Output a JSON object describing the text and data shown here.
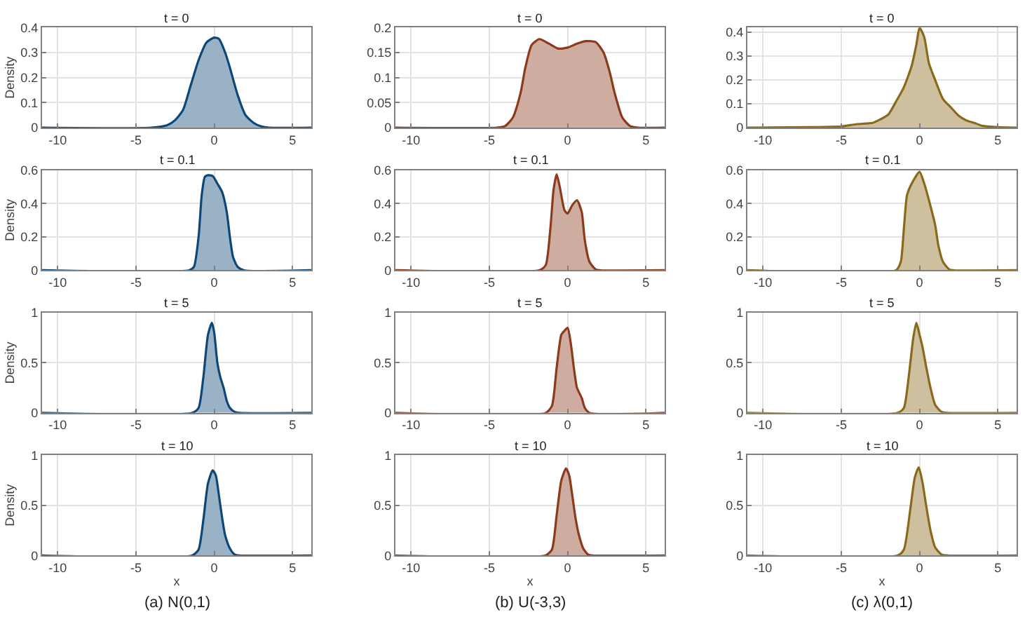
{
  "chart_data": [
    {
      "type": "area",
      "title": "t = 0",
      "ylabel": "Density",
      "color": "#0e4777",
      "grid": true,
      "xlim": [
        -11,
        6.2
      ],
      "xticks": [
        -10,
        -5,
        0,
        5
      ],
      "ylim": [
        0,
        0.4
      ],
      "yticks": [
        0,
        0.1,
        0.2,
        0.3,
        0.4
      ],
      "x": [
        -11,
        -4,
        -3,
        -2.5,
        -2,
        -1.5,
        -1,
        -0.5,
        0,
        0.3,
        0.7,
        1,
        1.5,
        2,
        2.5,
        3,
        3.5,
        6.2
      ],
      "values": [
        0,
        0,
        0.01,
        0.03,
        0.07,
        0.17,
        0.27,
        0.34,
        0.36,
        0.355,
        0.3,
        0.24,
        0.13,
        0.05,
        0.02,
        0.005,
        0,
        0
      ]
    },
    {
      "type": "area",
      "title": "t = 0",
      "color": "#8b3a1a",
      "grid": true,
      "xlim": [
        -11,
        6.2
      ],
      "xticks": [
        -10,
        -5,
        0,
        5
      ],
      "ylim": [
        0,
        0.2
      ],
      "yticks": [
        0,
        0.05,
        0.1,
        0.15,
        0.2
      ],
      "x": [
        -11,
        -4.5,
        -4,
        -3.5,
        -3,
        -2.7,
        -2.3,
        -1.8,
        -1.2,
        -0.6,
        0,
        0.6,
        1.2,
        1.8,
        2.3,
        2.7,
        3,
        3.5,
        4,
        4.5,
        6.2
      ],
      "values": [
        0,
        0,
        0.003,
        0.02,
        0.07,
        0.12,
        0.165,
        0.177,
        0.168,
        0.158,
        0.16,
        0.168,
        0.173,
        0.171,
        0.15,
        0.11,
        0.07,
        0.02,
        0.003,
        0,
        0
      ]
    },
    {
      "type": "area",
      "title": "t = 0",
      "color": "#8a6a1a",
      "grid": true,
      "xlim": [
        -11,
        6.2
      ],
      "xticks": [
        -10,
        -5,
        0,
        5
      ],
      "ylim": [
        0,
        0.42
      ],
      "yticks": [
        0,
        0.1,
        0.2,
        0.3,
        0.4
      ],
      "x": [
        -11,
        -7,
        -5,
        -4,
        -3,
        -2.5,
        -2,
        -1.5,
        -1,
        -0.5,
        -0.2,
        0,
        0.3,
        0.6,
        1,
        1.5,
        2,
        2.5,
        3,
        3.5,
        4,
        5,
        6.2
      ],
      "values": [
        0,
        0.002,
        0.005,
        0.015,
        0.02,
        0.035,
        0.055,
        0.11,
        0.17,
        0.26,
        0.35,
        0.42,
        0.38,
        0.27,
        0.2,
        0.12,
        0.085,
        0.05,
        0.03,
        0.02,
        0.008,
        0.002,
        0
      ]
    },
    {
      "type": "area",
      "title": "t = 0.1",
      "ylabel": "Density",
      "color": "#0e4777",
      "grid": true,
      "xlim": [
        -11,
        6.2
      ],
      "xticks": [
        -10,
        -5,
        0,
        5
      ],
      "ylim": [
        0,
        0.6
      ],
      "yticks": [
        0,
        0.2,
        0.4,
        0.6
      ],
      "x": [
        -11,
        -1.6,
        -1.3,
        -1,
        -0.8,
        -0.6,
        -0.4,
        -0.1,
        0.2,
        0.5,
        0.8,
        1,
        1.2,
        1.5,
        1.9,
        6.2
      ],
      "values": [
        0,
        0,
        0.02,
        0.2,
        0.45,
        0.56,
        0.57,
        0.565,
        0.52,
        0.47,
        0.35,
        0.2,
        0.08,
        0.02,
        0,
        0
      ]
    },
    {
      "type": "area",
      "title": "t = 0.1",
      "color": "#8b3a1a",
      "grid": true,
      "xlim": [
        -11,
        6.2
      ],
      "xticks": [
        -10,
        -5,
        0,
        5
      ],
      "ylim": [
        0,
        0.6
      ],
      "yticks": [
        0,
        0.2,
        0.4,
        0.6
      ],
      "x": [
        -11,
        -1.8,
        -1.4,
        -1.1,
        -0.9,
        -0.7,
        -0.5,
        -0.2,
        0,
        0.3,
        0.6,
        0.9,
        1.1,
        1.4,
        1.8,
        2.1,
        6.2
      ],
      "values": [
        0,
        0,
        0.03,
        0.25,
        0.48,
        0.575,
        0.5,
        0.36,
        0.34,
        0.39,
        0.42,
        0.35,
        0.18,
        0.05,
        0.005,
        0,
        0
      ]
    },
    {
      "type": "area",
      "title": "t = 0.1",
      "color": "#8a6a1a",
      "grid": true,
      "xlim": [
        -11,
        6.2
      ],
      "xticks": [
        -10,
        -5,
        0,
        5
      ],
      "ylim": [
        0,
        0.6
      ],
      "yticks": [
        0,
        0.2,
        0.4,
        0.6
      ],
      "x": [
        -11,
        -1.5,
        -1.2,
        -1,
        -0.8,
        -0.5,
        0,
        0.3,
        0.6,
        1,
        1.2,
        1.5,
        1.9,
        2.2,
        6.2
      ],
      "values": [
        0,
        0,
        0.05,
        0.25,
        0.45,
        0.52,
        0.59,
        0.52,
        0.42,
        0.27,
        0.15,
        0.05,
        0.005,
        0,
        0
      ]
    },
    {
      "type": "area",
      "title": "t = 5",
      "ylabel": "Density",
      "color": "#0e4777",
      "grid": true,
      "xlim": [
        -11,
        6.2
      ],
      "xticks": [
        -10,
        -5,
        0,
        5
      ],
      "ylim": [
        0,
        1
      ],
      "yticks": [
        0,
        0.5,
        1
      ],
      "x": [
        -11,
        -1.4,
        -1,
        -0.7,
        -0.4,
        -0.15,
        0,
        0.2,
        0.4,
        0.6,
        0.8,
        1,
        1.3,
        1.6,
        6.2
      ],
      "values": [
        0,
        0,
        0.05,
        0.35,
        0.78,
        0.9,
        0.8,
        0.5,
        0.35,
        0.25,
        0.12,
        0.05,
        0.01,
        0,
        0
      ]
    },
    {
      "type": "area",
      "title": "t = 5",
      "color": "#8b3a1a",
      "grid": true,
      "xlim": [
        -11,
        6.2
      ],
      "xticks": [
        -10,
        -5,
        0,
        5
      ],
      "ylim": [
        0,
        1
      ],
      "yticks": [
        0,
        0.5,
        1
      ],
      "x": [
        -11,
        -1.4,
        -1,
        -0.7,
        -0.4,
        -0.2,
        0,
        0.2,
        0.4,
        0.6,
        0.9,
        1.1,
        1.4,
        6.2
      ],
      "values": [
        0,
        0,
        0.07,
        0.45,
        0.78,
        0.82,
        0.85,
        0.7,
        0.45,
        0.25,
        0.15,
        0.05,
        0,
        0
      ]
    },
    {
      "type": "area",
      "title": "t = 5",
      "color": "#8a6a1a",
      "grid": true,
      "xlim": [
        -11,
        6.2
      ],
      "xticks": [
        -10,
        -5,
        0,
        5
      ],
      "ylim": [
        0,
        1
      ],
      "yticks": [
        0,
        0.5,
        1
      ],
      "x": [
        -11,
        -1.4,
        -1,
        -0.7,
        -0.4,
        -0.2,
        0,
        0.2,
        0.4,
        0.7,
        1,
        1.4,
        1.8,
        6.2
      ],
      "values": [
        0,
        0,
        0.05,
        0.35,
        0.75,
        0.9,
        0.78,
        0.65,
        0.48,
        0.25,
        0.08,
        0.01,
        0,
        0
      ]
    },
    {
      "type": "area",
      "title": "t = 10",
      "ylabel": "Density",
      "xlabel": "x",
      "annotations": [
        "(a) N(0,1)"
      ],
      "color": "#0e4777",
      "grid": true,
      "xlim": [
        -11,
        6.2
      ],
      "xticks": [
        -10,
        -5,
        0,
        5
      ],
      "ylim": [
        0,
        1
      ],
      "yticks": [
        0,
        0.5,
        1
      ],
      "x": [
        -11,
        -1.4,
        -1,
        -0.7,
        -0.4,
        -0.1,
        0.1,
        0.3,
        0.5,
        0.7,
        1,
        1.3,
        1.6,
        6.2
      ],
      "values": [
        0,
        0,
        0.06,
        0.35,
        0.72,
        0.85,
        0.8,
        0.6,
        0.38,
        0.2,
        0.07,
        0.01,
        0,
        0
      ]
    },
    {
      "type": "area",
      "title": "t = 10",
      "xlabel": "x",
      "annotations": [
        "(b) U(-3,3)"
      ],
      "color": "#8b3a1a",
      "grid": true,
      "xlim": [
        -11,
        6.2
      ],
      "xticks": [
        -10,
        -5,
        0,
        5
      ],
      "ylim": [
        0,
        1
      ],
      "yticks": [
        0,
        0.5,
        1
      ],
      "x": [
        -11,
        -1.4,
        -1,
        -0.7,
        -0.4,
        -0.1,
        0.1,
        0.3,
        0.5,
        0.7,
        1,
        1.3,
        1.6,
        6.2
      ],
      "values": [
        0,
        0,
        0.06,
        0.4,
        0.75,
        0.87,
        0.8,
        0.6,
        0.38,
        0.22,
        0.07,
        0.01,
        0,
        0
      ]
    },
    {
      "type": "area",
      "title": "t = 10",
      "xlabel": "x",
      "annotations": [
        "(c) λ(0,1)"
      ],
      "color": "#8a6a1a",
      "grid": true,
      "xlim": [
        -11,
        6.2
      ],
      "xticks": [
        -10,
        -5,
        0,
        5
      ],
      "ylim": [
        0,
        1
      ],
      "yticks": [
        0,
        0.5,
        1
      ],
      "x": [
        -11,
        -1.4,
        -1,
        -0.6,
        -0.3,
        -0.05,
        0.2,
        0.4,
        0.7,
        1,
        1.4,
        1.8,
        6.2
      ],
      "values": [
        0,
        0,
        0.06,
        0.45,
        0.78,
        0.88,
        0.72,
        0.52,
        0.25,
        0.08,
        0.01,
        0,
        0
      ]
    }
  ]
}
